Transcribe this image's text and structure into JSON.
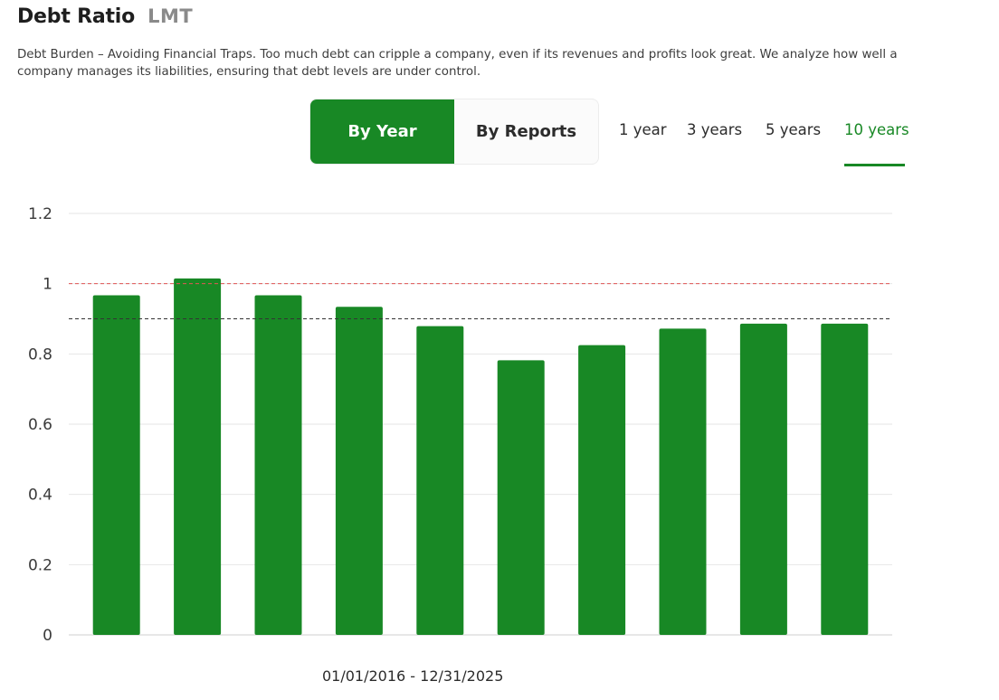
{
  "header": {
    "title": "Debt Ratio",
    "ticker": "LMT"
  },
  "description": "Debt Burden – Avoiding Financial Traps. Too much debt can cripple a company, even if its revenues and profits look great. We analyze how well a company manages its liabilities, ensuring that debt levels are under control.",
  "mode_toggle": {
    "by_year": "By Year",
    "by_reports": "By Reports",
    "active": "By Year"
  },
  "periods": [
    "1 year",
    "3 years",
    "5 years",
    "10 years"
  ],
  "active_period": "10 years",
  "date_range": "01/01/2016 - 12/31/2025",
  "colors": {
    "accent": "#188825",
    "bar": "#188825",
    "threshold_red": "#e05555",
    "threshold_dark": "#333333",
    "grid": "#e6e6e6"
  },
  "chart_data": {
    "type": "bar",
    "categories": [
      "",
      "",
      "",
      "",
      "",
      "",
      "",
      "",
      "",
      ""
    ],
    "series": [
      {
        "values": [
          0.967,
          1.015,
          0.967,
          0.934,
          0.879,
          0.782,
          0.825,
          0.872,
          0.886,
          0.886
        ]
      }
    ],
    "ylim": [
      0,
      1.2
    ],
    "yticks": [
      "0",
      "0.2",
      "0.4",
      "0.6",
      "0.8",
      "1",
      "1.2"
    ],
    "reference_lines": [
      {
        "value": 1.0,
        "style": "dashed",
        "color": "#e05555"
      },
      {
        "value": 0.9,
        "style": "dashed",
        "color": "#333333"
      }
    ],
    "grid": true,
    "title": "",
    "xlabel": "",
    "ylabel": ""
  }
}
